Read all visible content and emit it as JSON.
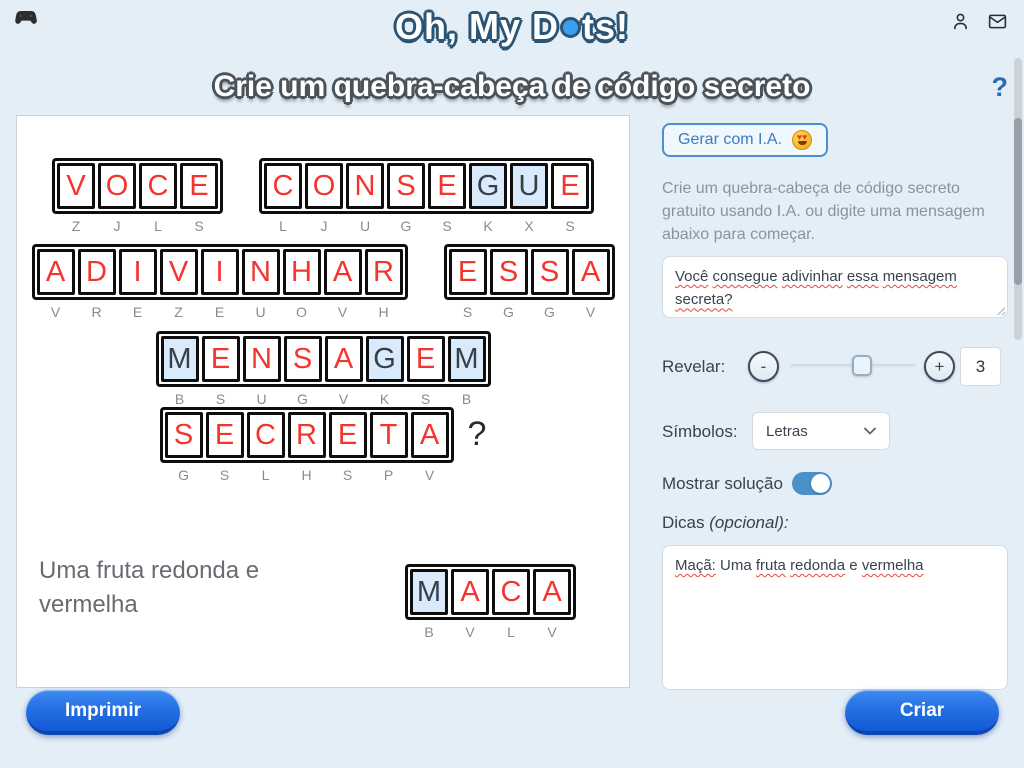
{
  "header": {
    "logo": {
      "left": "Oh, My D",
      "right": "ts!",
      "full": "Oh, My Dots!",
      "dot_color": "#39a0ee"
    },
    "title": "Crie um quebra-cabeça de código secreto",
    "help": "?"
  },
  "puzzle": {
    "rows": [
      {
        "groups": [
          {
            "word": "VOCE",
            "cells": [
              [
                "V",
                "Z",
                0
              ],
              [
                "O",
                "J",
                0
              ],
              [
                "C",
                "L",
                0
              ],
              [
                "E",
                "S",
                0
              ]
            ]
          },
          {
            "word": "CONSEGUE",
            "cells": [
              [
                "C",
                "L",
                0
              ],
              [
                "O",
                "J",
                0
              ],
              [
                "N",
                "U",
                0
              ],
              [
                "S",
                "G",
                0
              ],
              [
                "E",
                "S",
                0
              ],
              [
                "G",
                "K",
                1
              ],
              [
                "U",
                "X",
                1
              ],
              [
                "E",
                "S",
                0
              ]
            ]
          }
        ]
      },
      {
        "groups": [
          {
            "word": "ADIVINHAR",
            "cells": [
              [
                "A",
                "V",
                0
              ],
              [
                "D",
                "R",
                0
              ],
              [
                "I",
                "E",
                0
              ],
              [
                "V",
                "Z",
                0
              ],
              [
                "I",
                "E",
                0
              ],
              [
                "N",
                "U",
                0
              ],
              [
                "H",
                "O",
                0
              ],
              [
                "A",
                "V",
                0
              ],
              [
                "R",
                "H",
                0
              ]
            ]
          },
          {
            "word": "ESSA",
            "cells": [
              [
                "E",
                "S",
                0
              ],
              [
                "S",
                "G",
                0
              ],
              [
                "S",
                "G",
                0
              ],
              [
                "A",
                "V",
                0
              ]
            ]
          }
        ]
      },
      {
        "groups": [
          {
            "word": "MENSAGEM",
            "cells": [
              [
                "M",
                "B",
                1
              ],
              [
                "E",
                "S",
                0
              ],
              [
                "N",
                "U",
                0
              ],
              [
                "S",
                "G",
                0
              ],
              [
                "A",
                "V",
                0
              ],
              [
                "G",
                "K",
                1
              ],
              [
                "E",
                "S",
                0
              ],
              [
                "M",
                "B",
                1
              ]
            ]
          }
        ]
      },
      {
        "groups": [
          {
            "word": "SECRETA",
            "cells": [
              [
                "S",
                "G",
                0
              ],
              [
                "E",
                "S",
                0
              ],
              [
                "C",
                "L",
                0
              ],
              [
                "R",
                "H",
                0
              ],
              [
                "E",
                "S",
                0
              ],
              [
                "T",
                "P",
                0
              ],
              [
                "A",
                "V",
                0
              ]
            ],
            "suffix": "?"
          }
        ]
      }
    ],
    "hint": {
      "text": "Uma fruta redonda e vermelha",
      "group": {
        "word": "MACA",
        "cells": [
          [
            "M",
            "B",
            1
          ],
          [
            "A",
            "V",
            0
          ],
          [
            "C",
            "L",
            0
          ],
          [
            "A",
            "V",
            0
          ]
        ]
      }
    }
  },
  "sidebar": {
    "generate_button": {
      "label": "Gerar com I.A.",
      "emoji": "😍"
    },
    "intro": "Crie um quebra-cabeça de código secreto gratuito usando I.A. ou digite uma mensagem abaixo para começar.",
    "message": {
      "text": "Você consegue adivinhar essa mensagem secreta?",
      "words": [
        {
          "t": "Você",
          "sq": true
        },
        {
          "t": "consegue",
          "sq": true
        },
        {
          "t": "adivinhar",
          "sq": true
        },
        {
          "t": "essa",
          "sq": true
        },
        {
          "t": "mensagem",
          "sq": true
        },
        {
          "t": "secreta?",
          "sq": true
        }
      ]
    },
    "revelar": {
      "label": "Revelar:",
      "minus": "-",
      "plus": "+",
      "value": "3",
      "slider_percent": 57
    },
    "simbolos": {
      "label": "Símbolos:",
      "value": "Letras"
    },
    "solution_toggle": {
      "label": "Mostrar solução",
      "on": true
    },
    "dicas_label": {
      "text": "Dicas",
      "suffix": "(opcional):"
    },
    "hints": {
      "text": "Maçã: Uma fruta redonda e vermelha",
      "words": [
        {
          "t": "Maçã:",
          "sq": true
        },
        {
          "t": "Uma",
          "sq": false
        },
        {
          "t": "fruta",
          "sq": true
        },
        {
          "t": "redonda",
          "sq": true
        },
        {
          "t": "e",
          "sq": false
        },
        {
          "t": "vermelha",
          "sq": true
        }
      ]
    }
  },
  "footer": {
    "print_label": "Imprimir",
    "create_label": "Criar"
  },
  "colors": {
    "page_bg": "#e4eef7",
    "accent_blue": "#1359d6",
    "letter_red": "#f4352d",
    "revealed_bg": "#d8eafb",
    "toggle_blue": "#4b90c8",
    "outline_navy": "#2b5574"
  }
}
